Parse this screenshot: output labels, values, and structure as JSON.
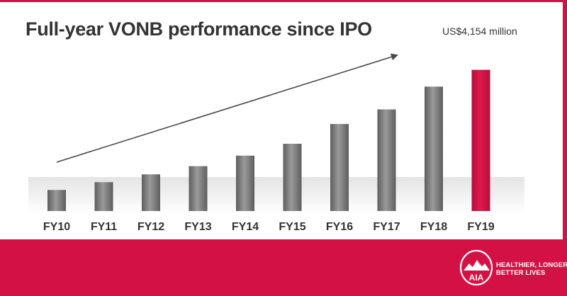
{
  "colors": {
    "brand_red": "#d31145",
    "bar_gray": "#7a7a7a",
    "highlight_bar": "#d31145",
    "text": "#333333"
  },
  "header": {
    "title": "Full-year VONB performance since IPO",
    "value_label": "US$4,154 million"
  },
  "chart_data": {
    "type": "bar",
    "title": "Full-year VONB performance since IPO",
    "xlabel": "",
    "ylabel": "",
    "categories": [
      "FY10",
      "FY11",
      "FY12",
      "FY13",
      "FY14",
      "FY15",
      "FY16",
      "FY17",
      "FY18",
      "FY19"
    ],
    "values": [
      620,
      850,
      1080,
      1320,
      1630,
      1980,
      2560,
      2990,
      3660,
      4154
    ],
    "highlight_index": 9,
    "annotations": [
      {
        "text": "US$4,154 million",
        "category": "FY19"
      },
      {
        "type": "trend-arrow",
        "direction": "up-right"
      }
    ],
    "ylim": [
      0,
      4500
    ],
    "grid": false,
    "legend": "none"
  },
  "footer": {
    "logo_text": "AIA",
    "tagline_lines": [
      "HEALTHIER, LONGER,",
      "BETTER LIVES"
    ]
  }
}
